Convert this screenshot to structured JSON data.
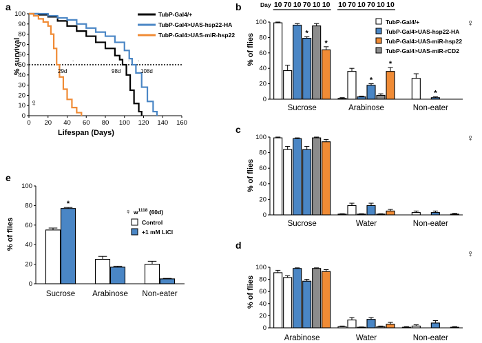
{
  "colors": {
    "black": "#000000",
    "blue": "#4a86c5",
    "orange": "#f08b35",
    "grey": "#8c8c8c",
    "white": "#ffffff"
  },
  "female_symbol": "♀",
  "chart_data": [
    {
      "panel": "a",
      "type": "line",
      "ylabel": "% survival",
      "xlabel": "Lifespan (Days)",
      "xlim": [
        0,
        160
      ],
      "ylim": [
        0,
        100
      ],
      "xticks": [
        0,
        20,
        40,
        60,
        80,
        100,
        120,
        140,
        160
      ],
      "yticks": [
        0,
        10,
        20,
        30,
        40,
        50,
        60,
        70,
        80,
        90,
        100
      ],
      "reference_line": 50,
      "median_labels": [
        "29d",
        "98d",
        "108d"
      ],
      "median_marks": [
        ".",
        ".",
        "."
      ],
      "series": [
        {
          "name": "TubP-Gal4/+",
          "color": "#000000",
          "x": [
            0,
            10,
            20,
            30,
            40,
            50,
            60,
            70,
            80,
            90,
            95,
            98,
            102,
            106,
            110,
            115,
            118
          ],
          "y": [
            100,
            99,
            97,
            93,
            88,
            83,
            78,
            72,
            66,
            59,
            55,
            50,
            40,
            25,
            12,
            4,
            0
          ]
        },
        {
          "name": "TubP-Gal4>UAS-hsp22-HA",
          "color": "#4a86c5",
          "x": [
            0,
            10,
            20,
            30,
            40,
            50,
            60,
            70,
            80,
            90,
            100,
            105,
            108,
            112,
            118,
            124,
            130,
            134
          ],
          "y": [
            100,
            100,
            98,
            96,
            94,
            90,
            86,
            82,
            78,
            72,
            64,
            56,
            50,
            42,
            28,
            14,
            4,
            0
          ]
        },
        {
          "name": "TubP-Gal4>UAS-miR-hsp22",
          "color": "#f08b35",
          "x": [
            0,
            5,
            10,
            15,
            20,
            23,
            26,
            29,
            32,
            36,
            40,
            45,
            50,
            55
          ],
          "y": [
            100,
            98,
            95,
            92,
            88,
            80,
            66,
            50,
            38,
            26,
            16,
            8,
            3,
            0
          ]
        }
      ]
    },
    {
      "panel": "b",
      "type": "bar",
      "ylabel": "% of flies",
      "ylim": [
        0,
        100
      ],
      "yticks": [
        0,
        20,
        40,
        60,
        80,
        100
      ],
      "day_header": "Day",
      "day_labels": [
        "10",
        "70",
        "10",
        "70",
        "10",
        "10"
      ],
      "categories": [
        "Sucrose",
        "Arabinose",
        "Non-eater"
      ],
      "series": [
        {
          "name": "TubP-Gal4/+",
          "day": "10",
          "color": "#ffffff",
          "values": [
            99,
            1,
            0
          ],
          "errors": [
            1,
            1,
            0
          ],
          "stars": [
            "",
            "",
            ""
          ]
        },
        {
          "name": "TubP-Gal4/+",
          "day": "70",
          "color": "#ffffff",
          "values": [
            37,
            36,
            27
          ],
          "errors": [
            7,
            4,
            6
          ],
          "stars": [
            "",
            "",
            ""
          ]
        },
        {
          "name": "TubP-Gal4>UAS-hsp22-HA",
          "day": "10",
          "color": "#4a86c5",
          "values": [
            96,
            3,
            0
          ],
          "errors": [
            2,
            1,
            0
          ],
          "stars": [
            "",
            "",
            ""
          ]
        },
        {
          "name": "TubP-Gal4>UAS-hsp22-HA",
          "day": "70",
          "color": "#4a86c5",
          "values": [
            79,
            18,
            2
          ],
          "errors": [
            2,
            2,
            1
          ],
          "stars": [
            "*",
            "*",
            "*"
          ]
        },
        {
          "name": "TubP-Gal4>UAS-miR-rCD2",
          "day": "10",
          "color": "#8c8c8c",
          "values": [
            95,
            5,
            0
          ],
          "errors": [
            3,
            2,
            0
          ],
          "stars": [
            "",
            "",
            ""
          ]
        },
        {
          "name": "TubP-Gal4>UAS-miR-hsp22",
          "day": "10",
          "color": "#f08b35",
          "values": [
            64,
            36,
            0
          ],
          "errors": [
            4,
            5,
            0
          ],
          "stars": [
            "*",
            "*",
            ""
          ]
        }
      ],
      "legend": [
        {
          "label": "TubP-Gal4/+",
          "color": "#ffffff"
        },
        {
          "label": "TubP-Gal4>UAS-hsp22-HA",
          "color": "#4a86c5"
        },
        {
          "label": "TubP-Gal4>UAS-miR-hsp22",
          "color": "#f08b35"
        },
        {
          "label": "TubP-Gal4>UAS-miR-rCD2",
          "color": "#8c8c8c"
        }
      ]
    },
    {
      "panel": "c",
      "type": "bar",
      "ylabel": "% of flies",
      "ylim": [
        0,
        100
      ],
      "yticks": [
        0,
        20,
        40,
        60,
        80,
        100
      ],
      "categories": [
        "Sucrose",
        "Water",
        "Non-eater"
      ],
      "series": [
        {
          "color": "#ffffff",
          "values": [
            99,
            1,
            0
          ],
          "errors": [
            1,
            0.5,
            0
          ]
        },
        {
          "color": "#ffffff",
          "values": [
            84,
            12,
            3
          ],
          "errors": [
            4,
            3,
            2
          ]
        },
        {
          "color": "#4a86c5",
          "values": [
            98,
            1,
            0
          ],
          "errors": [
            1,
            0.5,
            0
          ]
        },
        {
          "color": "#4a86c5",
          "values": [
            84,
            12,
            3
          ],
          "errors": [
            4,
            3,
            2
          ]
        },
        {
          "color": "#8c8c8c",
          "values": [
            99,
            1,
            0
          ],
          "errors": [
            1,
            0.5,
            0
          ]
        },
        {
          "color": "#f08b35",
          "values": [
            94,
            5,
            1
          ],
          "errors": [
            3,
            2,
            1
          ]
        }
      ]
    },
    {
      "panel": "d",
      "type": "bar",
      "ylabel": "% of flies",
      "ylim": [
        0,
        100
      ],
      "yticks": [
        0,
        20,
        40,
        60,
        80,
        100
      ],
      "categories": [
        "Arabinose",
        "Water",
        "Non-eater"
      ],
      "series": [
        {
          "color": "#ffffff",
          "values": [
            91,
            2,
            1
          ],
          "errors": [
            4,
            1,
            1
          ]
        },
        {
          "color": "#ffffff",
          "values": [
            83,
            13,
            3
          ],
          "errors": [
            3,
            4,
            2
          ]
        },
        {
          "color": "#4a86c5",
          "values": [
            98,
            1,
            0
          ],
          "errors": [
            1,
            0.5,
            0
          ]
        },
        {
          "color": "#4a86c5",
          "values": [
            77,
            14,
            8
          ],
          "errors": [
            3,
            3,
            4
          ]
        },
        {
          "color": "#8c8c8c",
          "values": [
            98,
            2,
            0
          ],
          "errors": [
            1,
            1,
            0
          ]
        },
        {
          "color": "#f08b35",
          "values": [
            93,
            6,
            1
          ],
          "errors": [
            3,
            3,
            1
          ]
        }
      ]
    },
    {
      "panel": "e",
      "type": "bar",
      "ylabel": "% of flies",
      "ylim": [
        0,
        100
      ],
      "yticks": [
        0,
        20,
        40,
        60,
        80,
        100
      ],
      "categories": [
        "Sucrose",
        "Arabinose",
        "Non-eater"
      ],
      "legend_title": "w1118 (60d)",
      "legend_title_base": "w",
      "legend_title_sup": "1118",
      "legend_title_rest": " (60d)",
      "series": [
        {
          "name": "Control",
          "color": "#ffffff",
          "values": [
            55,
            25,
            20
          ],
          "errors": [
            2,
            3,
            3
          ],
          "stars": [
            "",
            "",
            ""
          ]
        },
        {
          "name": "+1 mM LiCl",
          "color": "#4a86c5",
          "values": [
            77,
            17,
            5
          ],
          "errors": [
            1,
            1,
            0.5
          ],
          "stars": [
            "*",
            "",
            ""
          ]
        }
      ]
    }
  ]
}
